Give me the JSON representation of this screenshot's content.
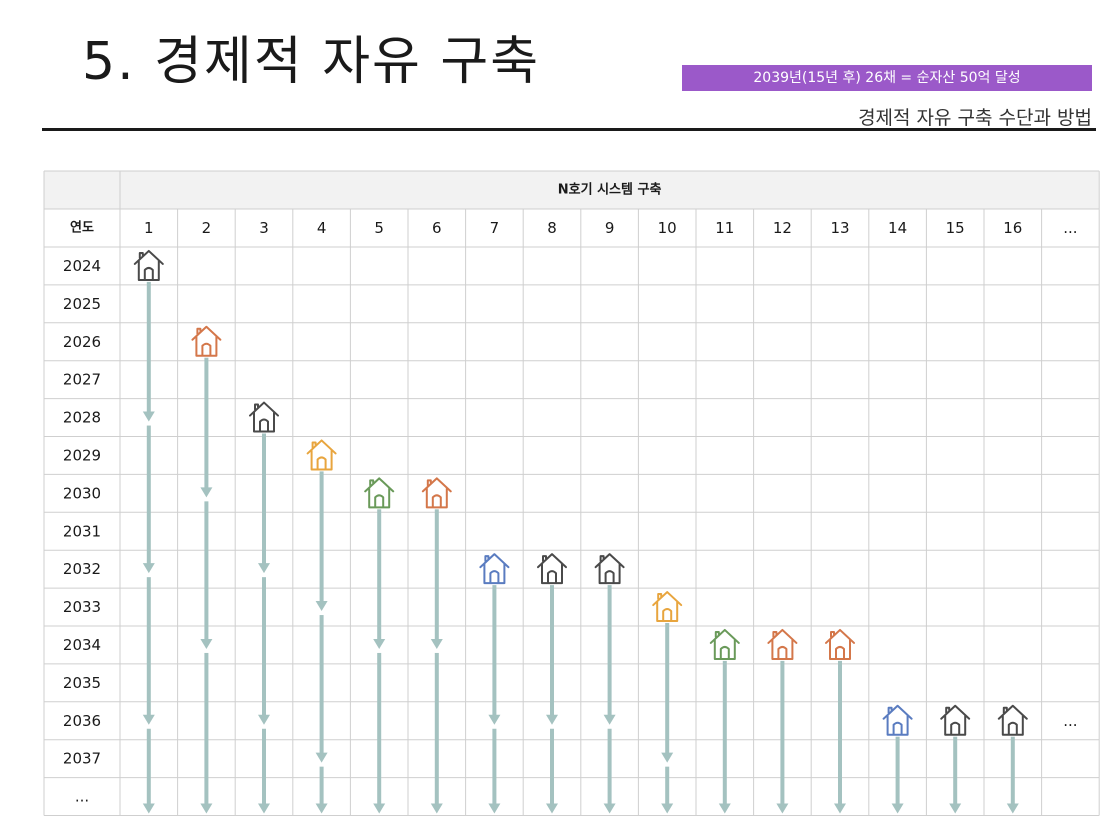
{
  "header": {
    "title": "5. 경제적 자유 구축",
    "badge": "2039년(15년 후) 26채 = 순자산 50억 달성",
    "subtitle": "경제적 자유 구축 수단과 방법"
  },
  "table": {
    "group_header": "N호기 시스템 구축",
    "year_header": "연도",
    "columns": [
      "1",
      "2",
      "3",
      "4",
      "5",
      "6",
      "7",
      "8",
      "9",
      "10",
      "11",
      "12",
      "13",
      "14",
      "15",
      "16",
      "..."
    ],
    "years": [
      "2024",
      "2025",
      "2026",
      "2027",
      "2028",
      "2029",
      "2030",
      "2031",
      "2032",
      "2033",
      "2034",
      "2035",
      "2036",
      "2037",
      "..."
    ],
    "continuation_mark": "...",
    "houses": [
      {
        "unit": 1,
        "year": "2024",
        "color": "#4a4a4a"
      },
      {
        "unit": 2,
        "year": "2026",
        "color": "#d4774a"
      },
      {
        "unit": 3,
        "year": "2028",
        "color": "#4a4a4a"
      },
      {
        "unit": 4,
        "year": "2029",
        "color": "#e8a53e"
      },
      {
        "unit": 5,
        "year": "2030",
        "color": "#6a9a5a"
      },
      {
        "unit": 6,
        "year": "2030",
        "color": "#d4774a"
      },
      {
        "unit": 7,
        "year": "2032",
        "color": "#5a7cc0"
      },
      {
        "unit": 8,
        "year": "2032",
        "color": "#4a4a4a"
      },
      {
        "unit": 9,
        "year": "2032",
        "color": "#4a4a4a"
      },
      {
        "unit": 10,
        "year": "2033",
        "color": "#e8a53e"
      },
      {
        "unit": 11,
        "year": "2034",
        "color": "#6a9a5a"
      },
      {
        "unit": 12,
        "year": "2034",
        "color": "#d4774a"
      },
      {
        "unit": 13,
        "year": "2034",
        "color": "#d4774a"
      },
      {
        "unit": 14,
        "year": "2036",
        "color": "#5a7cc0"
      },
      {
        "unit": 15,
        "year": "2036",
        "color": "#4a4a4a"
      },
      {
        "unit": 16,
        "year": "2036",
        "color": "#4a4a4a"
      }
    ],
    "arrow_color": "#a4c2c0"
  }
}
